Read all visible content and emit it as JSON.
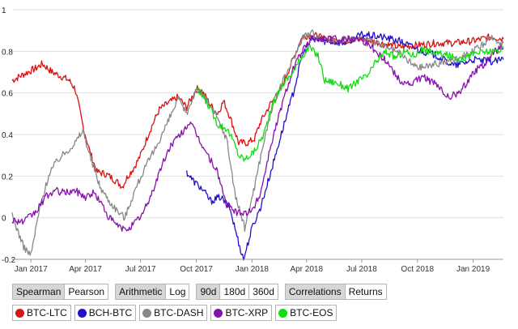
{
  "chart_data": {
    "type": "line",
    "ylim": [
      -0.2,
      1.0
    ],
    "y_ticks": [
      "1",
      "0.8",
      "0.6",
      "0.4",
      "0.2",
      "0",
      "-0.2"
    ],
    "x_ticks": [
      "Jan 2017",
      "Apr 2017",
      "Jul 2017",
      "Oct 2017",
      "Jan 2018",
      "Apr 2018",
      "Jul 2018",
      "Oct 2018",
      "Jan 2019"
    ],
    "x_range": [
      "2016-12-01",
      "2019-02-20"
    ],
    "grid": "horizontal",
    "series": [
      {
        "name": "BTC-LTC",
        "color": "#dd1111",
        "points": [
          [
            "2016-12-01",
            0.66
          ],
          [
            "2016-12-20",
            0.69
          ],
          [
            "2017-01-10",
            0.72
          ],
          [
            "2017-01-20",
            0.74
          ],
          [
            "2017-02-05",
            0.7
          ],
          [
            "2017-02-20",
            0.68
          ],
          [
            "2017-03-05",
            0.66
          ],
          [
            "2017-03-15",
            0.62
          ],
          [
            "2017-03-28",
            0.44
          ],
          [
            "2017-04-08",
            0.32
          ],
          [
            "2017-04-20",
            0.22
          ],
          [
            "2017-05-05",
            0.21
          ],
          [
            "2017-05-20",
            0.18
          ],
          [
            "2017-06-01",
            0.15
          ],
          [
            "2017-06-10",
            0.2
          ],
          [
            "2017-06-20",
            0.24
          ],
          [
            "2017-07-01",
            0.3
          ],
          [
            "2017-07-15",
            0.41
          ],
          [
            "2017-08-01",
            0.52
          ],
          [
            "2017-08-15",
            0.55
          ],
          [
            "2017-09-01",
            0.58
          ],
          [
            "2017-09-15",
            0.53
          ],
          [
            "2017-10-01",
            0.62
          ],
          [
            "2017-10-10",
            0.61
          ],
          [
            "2017-10-25",
            0.54
          ],
          [
            "2017-11-05",
            0.5
          ],
          [
            "2017-11-15",
            0.56
          ],
          [
            "2017-11-25",
            0.49
          ],
          [
            "2017-12-10",
            0.36
          ],
          [
            "2017-12-25",
            0.36
          ],
          [
            "2018-01-05",
            0.38
          ],
          [
            "2018-01-15",
            0.46
          ],
          [
            "2018-02-01",
            0.55
          ],
          [
            "2018-02-15",
            0.6
          ],
          [
            "2018-03-01",
            0.7
          ],
          [
            "2018-03-15",
            0.8
          ],
          [
            "2018-03-25",
            0.87
          ],
          [
            "2018-04-10",
            0.88
          ],
          [
            "2018-05-01",
            0.86
          ],
          [
            "2018-06-01",
            0.85
          ],
          [
            "2018-07-01",
            0.86
          ],
          [
            "2018-08-01",
            0.84
          ],
          [
            "2018-09-01",
            0.82
          ],
          [
            "2018-10-01",
            0.83
          ],
          [
            "2018-11-01",
            0.84
          ],
          [
            "2018-12-01",
            0.84
          ],
          [
            "2019-01-01",
            0.85
          ],
          [
            "2019-02-01",
            0.87
          ],
          [
            "2019-02-20",
            0.86
          ]
        ]
      },
      {
        "name": "BCH-BTC",
        "color": "#2211cc",
        "points": [
          [
            "2017-09-15",
            0.22
          ],
          [
            "2017-09-25",
            0.18
          ],
          [
            "2017-10-10",
            0.14
          ],
          [
            "2017-10-25",
            0.08
          ],
          [
            "2017-11-10",
            0.1
          ],
          [
            "2017-11-25",
            0.05
          ],
          [
            "2017-12-10",
            -0.12
          ],
          [
            "2017-12-18",
            -0.2
          ],
          [
            "2018-01-01",
            -0.05
          ],
          [
            "2018-01-15",
            0.05
          ],
          [
            "2018-02-01",
            0.22
          ],
          [
            "2018-02-20",
            0.42
          ],
          [
            "2018-03-10",
            0.6
          ],
          [
            "2018-03-25",
            0.78
          ],
          [
            "2018-04-10",
            0.86
          ],
          [
            "2018-05-01",
            0.85
          ],
          [
            "2018-06-01",
            0.84
          ],
          [
            "2018-07-01",
            0.88
          ],
          [
            "2018-08-01",
            0.87
          ],
          [
            "2018-09-01",
            0.85
          ],
          [
            "2018-10-01",
            0.81
          ],
          [
            "2018-11-01",
            0.78
          ],
          [
            "2018-12-01",
            0.73
          ],
          [
            "2019-01-01",
            0.76
          ],
          [
            "2019-02-01",
            0.75
          ],
          [
            "2019-02-20",
            0.76
          ]
        ]
      },
      {
        "name": "BTC-DASH",
        "color": "#888888",
        "points": [
          [
            "2016-12-01",
            0.01
          ],
          [
            "2016-12-20",
            -0.14
          ],
          [
            "2017-01-01",
            -0.18
          ],
          [
            "2017-01-15",
            0.04
          ],
          [
            "2017-02-01",
            0.22
          ],
          [
            "2017-02-15",
            0.28
          ],
          [
            "2017-03-01",
            0.32
          ],
          [
            "2017-03-15",
            0.36
          ],
          [
            "2017-03-28",
            0.42
          ],
          [
            "2017-04-10",
            0.28
          ],
          [
            "2017-04-25",
            0.15
          ],
          [
            "2017-05-10",
            0.08
          ],
          [
            "2017-05-25",
            0.03
          ],
          [
            "2017-06-05",
            0.0
          ],
          [
            "2017-06-20",
            0.12
          ],
          [
            "2017-07-05",
            0.22
          ],
          [
            "2017-07-25",
            0.33
          ],
          [
            "2017-08-15",
            0.46
          ],
          [
            "2017-09-01",
            0.57
          ],
          [
            "2017-09-15",
            0.5
          ],
          [
            "2017-10-01",
            0.62
          ],
          [
            "2017-10-15",
            0.58
          ],
          [
            "2017-11-01",
            0.5
          ],
          [
            "2017-11-20",
            0.38
          ],
          [
            "2017-12-05",
            0.1
          ],
          [
            "2017-12-20",
            -0.05
          ],
          [
            "2018-01-05",
            0.15
          ],
          [
            "2018-01-20",
            0.36
          ],
          [
            "2018-02-05",
            0.55
          ],
          [
            "2018-02-20",
            0.65
          ],
          [
            "2018-03-10",
            0.76
          ],
          [
            "2018-03-25",
            0.87
          ],
          [
            "2018-04-10",
            0.89
          ],
          [
            "2018-05-01",
            0.85
          ],
          [
            "2018-06-01",
            0.86
          ],
          [
            "2018-07-01",
            0.86
          ],
          [
            "2018-08-01",
            0.83
          ],
          [
            "2018-09-01",
            0.79
          ],
          [
            "2018-10-01",
            0.72
          ],
          [
            "2018-11-01",
            0.74
          ],
          [
            "2018-12-01",
            0.76
          ],
          [
            "2019-01-01",
            0.8
          ],
          [
            "2019-02-01",
            0.86
          ],
          [
            "2019-02-20",
            0.84
          ]
        ]
      },
      {
        "name": "BTC-XRP",
        "color": "#8811aa",
        "points": [
          [
            "2016-12-01",
            -0.01
          ],
          [
            "2016-12-20",
            -0.02
          ],
          [
            "2017-01-10",
            0.03
          ],
          [
            "2017-01-25",
            0.1
          ],
          [
            "2017-02-10",
            0.13
          ],
          [
            "2017-02-25",
            0.12
          ],
          [
            "2017-03-15",
            0.13
          ],
          [
            "2017-04-01",
            0.1
          ],
          [
            "2017-04-15",
            0.12
          ],
          [
            "2017-04-25",
            0.08
          ],
          [
            "2017-05-10",
            0.0
          ],
          [
            "2017-05-25",
            -0.04
          ],
          [
            "2017-06-05",
            -0.06
          ],
          [
            "2017-06-20",
            -0.03
          ],
          [
            "2017-07-05",
            0.02
          ],
          [
            "2017-07-20",
            0.12
          ],
          [
            "2017-08-05",
            0.25
          ],
          [
            "2017-08-20",
            0.35
          ],
          [
            "2017-09-05",
            0.4
          ],
          [
            "2017-09-20",
            0.46
          ],
          [
            "2017-10-05",
            0.38
          ],
          [
            "2017-10-20",
            0.3
          ],
          [
            "2017-11-05",
            0.22
          ],
          [
            "2017-11-20",
            0.06
          ],
          [
            "2017-12-10",
            0.02
          ],
          [
            "2018-01-01",
            0.03
          ],
          [
            "2018-01-15",
            0.12
          ],
          [
            "2018-02-01",
            0.35
          ],
          [
            "2018-02-20",
            0.55
          ],
          [
            "2018-03-10",
            0.72
          ],
          [
            "2018-03-25",
            0.8
          ],
          [
            "2018-04-10",
            0.86
          ],
          [
            "2018-05-01",
            0.86
          ],
          [
            "2018-06-01",
            0.86
          ],
          [
            "2018-07-01",
            0.86
          ],
          [
            "2018-07-25",
            0.8
          ],
          [
            "2018-08-15",
            0.74
          ],
          [
            "2018-09-01",
            0.66
          ],
          [
            "2018-09-20",
            0.64
          ],
          [
            "2018-10-10",
            0.68
          ],
          [
            "2018-11-01",
            0.64
          ],
          [
            "2018-11-20",
            0.58
          ],
          [
            "2018-12-10",
            0.6
          ],
          [
            "2019-01-01",
            0.7
          ],
          [
            "2019-01-20",
            0.74
          ],
          [
            "2019-02-05",
            0.8
          ],
          [
            "2019-02-20",
            0.82
          ]
        ]
      },
      {
        "name": "BTC-EOS",
        "color": "#11dd11",
        "points": [
          [
            "2017-10-01",
            0.62
          ],
          [
            "2017-10-15",
            0.57
          ],
          [
            "2017-10-25",
            0.52
          ],
          [
            "2017-11-05",
            0.45
          ],
          [
            "2017-11-20",
            0.43
          ],
          [
            "2017-12-01",
            0.37
          ],
          [
            "2017-12-10",
            0.3
          ],
          [
            "2017-12-20",
            0.28
          ],
          [
            "2018-01-05",
            0.32
          ],
          [
            "2018-01-20",
            0.4
          ],
          [
            "2018-02-05",
            0.55
          ],
          [
            "2018-02-20",
            0.64
          ],
          [
            "2018-03-10",
            0.7
          ],
          [
            "2018-03-25",
            0.78
          ],
          [
            "2018-04-05",
            0.82
          ],
          [
            "2018-04-20",
            0.78
          ],
          [
            "2018-05-01",
            0.66
          ],
          [
            "2018-05-20",
            0.65
          ],
          [
            "2018-06-10",
            0.62
          ],
          [
            "2018-06-25",
            0.66
          ],
          [
            "2018-07-10",
            0.68
          ],
          [
            "2018-07-25",
            0.75
          ],
          [
            "2018-08-10",
            0.8
          ],
          [
            "2018-08-25",
            0.77
          ],
          [
            "2018-09-10",
            0.8
          ],
          [
            "2018-09-25",
            0.78
          ],
          [
            "2018-10-10",
            0.81
          ],
          [
            "2018-11-01",
            0.79
          ],
          [
            "2018-11-20",
            0.78
          ],
          [
            "2018-12-10",
            0.76
          ],
          [
            "2019-01-01",
            0.79
          ],
          [
            "2019-02-01",
            0.8
          ],
          [
            "2019-02-20",
            0.81
          ]
        ]
      }
    ]
  },
  "controls": {
    "groups": [
      [
        {
          "label": "Spearman",
          "active": true
        },
        {
          "label": "Pearson",
          "active": false
        }
      ],
      [
        {
          "label": "Arithmetic",
          "active": true
        },
        {
          "label": "Log",
          "active": false
        }
      ],
      [
        {
          "label": "90d",
          "active": true
        },
        {
          "label": "180d",
          "active": false
        },
        {
          "label": "360d",
          "active": false
        }
      ],
      [
        {
          "label": "Correlations",
          "active": true
        },
        {
          "label": "Returns",
          "active": false
        }
      ]
    ]
  },
  "legend": [
    {
      "label": "BTC-LTC",
      "color": "#dd1111"
    },
    {
      "label": "BCH-BTC",
      "color": "#2211cc"
    },
    {
      "label": "BTC-DASH",
      "color": "#888888"
    },
    {
      "label": "BTC-XRP",
      "color": "#8811aa"
    },
    {
      "label": "BTC-EOS",
      "color": "#11dd11"
    }
  ]
}
